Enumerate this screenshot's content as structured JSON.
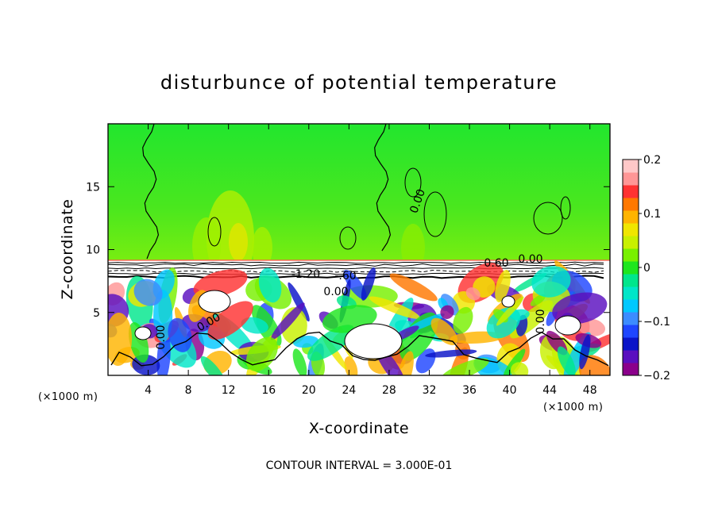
{
  "chart_data": {
    "type": "heatmap",
    "title": "disturbunce of potential temperature",
    "xlabel": "X-coordinate",
    "ylabel": "Z-coordinate",
    "x_unit": "(×1000 m)",
    "y_unit": "(×1000 m)",
    "xlim": [
      0,
      50
    ],
    "ylim": [
      0,
      20
    ],
    "x_ticks": [
      "4",
      "8",
      "12",
      "16",
      "20",
      "24",
      "28",
      "32",
      "36",
      "40",
      "44",
      "48"
    ],
    "y_ticks": [
      "5",
      "10",
      "15"
    ],
    "colorbar": {
      "range": [
        -0.2,
        0.2
      ],
      "tick_labels": [
        "0.2",
        "0.1",
        "0",
        "−0.1",
        "−0.2"
      ],
      "tick_values": [
        0.2,
        0.1,
        0,
        -0.1,
        -0.2
      ],
      "colors": [
        "#8b008b",
        "#5a0fbf",
        "#0a14c8",
        "#1e46ff",
        "#3c8cff",
        "#00c8ff",
        "#00e6c8",
        "#00e68c",
        "#1ee61e",
        "#78f000",
        "#c8f000",
        "#f0e600",
        "#ffb400",
        "#ff7800",
        "#ff3232",
        "#ff9696",
        "#ffc8c8"
      ]
    },
    "contour_labels": [
      "0.00",
      "0.00",
      "0.00",
      "0.00",
      "0.60",
      "0.00",
      "-1.20",
      "-.60",
      "0.00"
    ],
    "footer": "CONTOUR INTERVAL = 3.000E-01"
  }
}
